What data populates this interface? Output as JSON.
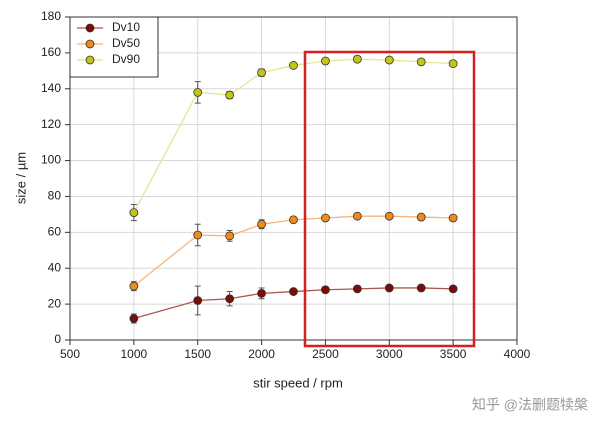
{
  "chart_data": {
    "type": "line",
    "x_label": "stir speed / rpm",
    "y_label": "size / µm",
    "x": [
      1000,
      1500,
      1750,
      2000,
      2250,
      2500,
      2750,
      3000,
      3250,
      3500
    ],
    "series": [
      {
        "name": "Dv10",
        "color": "#7a0c0c",
        "line_color": "#a85a50",
        "values": [
          12,
          22,
          23,
          26,
          27,
          28,
          28.5,
          29,
          29,
          28.5
        ],
        "errors": [
          2.5,
          8,
          4,
          3,
          1,
          1,
          1,
          1,
          1,
          1
        ]
      },
      {
        "name": "Dv50",
        "color": "#f08a1c",
        "line_color": "#f6b47a",
        "values": [
          30,
          58.5,
          58,
          64.5,
          67,
          68,
          69,
          69,
          68.5,
          68
        ],
        "errors": [
          2.5,
          6,
          3,
          2.5,
          1,
          1,
          1,
          1,
          1,
          1
        ]
      },
      {
        "name": "Dv90",
        "color": "#c4c41a",
        "line_color": "#dcea98",
        "values": [
          71,
          138,
          136.5,
          149,
          153,
          155.5,
          156.5,
          156,
          155,
          154
        ],
        "errors": [
          4.5,
          6,
          2,
          2,
          1,
          1,
          1,
          1,
          1,
          1
        ]
      }
    ],
    "xlim": [
      500,
      4000
    ],
    "xticks": [
      500,
      1000,
      1500,
      2000,
      2500,
      3000,
      3500,
      4000
    ],
    "ylim": [
      0,
      180
    ],
    "yticks": [
      0,
      20,
      40,
      60,
      80,
      100,
      120,
      140,
      160,
      180
    ],
    "grid": true,
    "legend": "top-left",
    "watermark": "知乎 @法删题犊槃"
  }
}
